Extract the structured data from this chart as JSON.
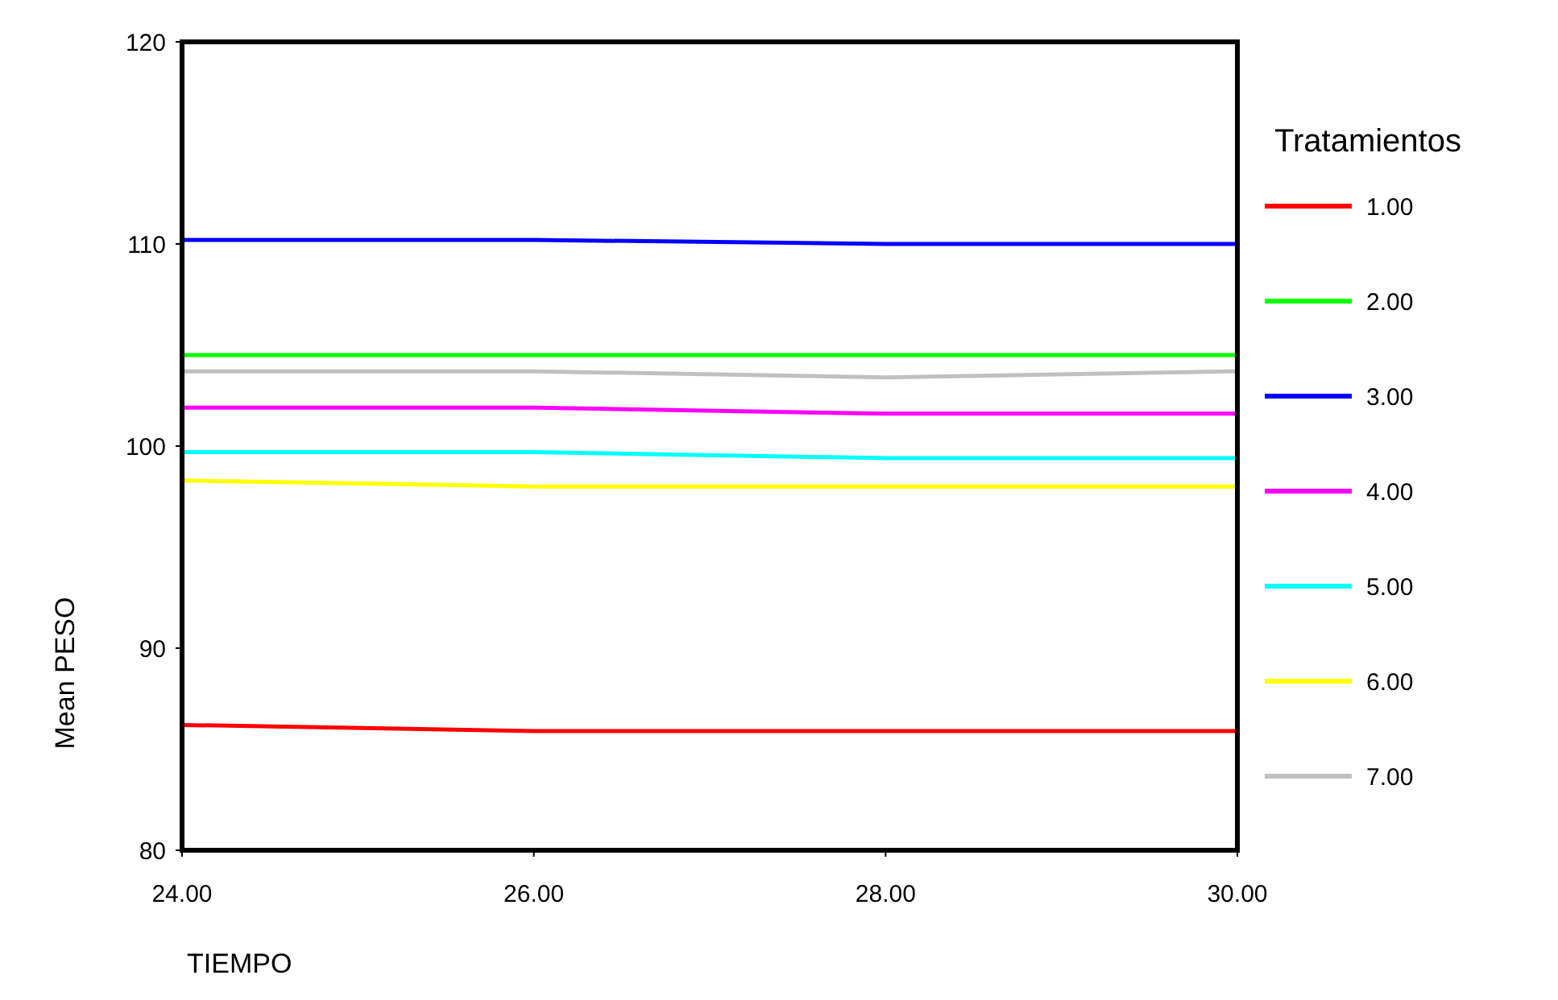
{
  "chart_data": {
    "type": "line",
    "xlabel": "TIEMPO",
    "ylabel": "Mean PESO",
    "legend_title": "Tratamientos",
    "legend": "right",
    "grid": false,
    "marker": "none",
    "line_style": "solid",
    "x": [
      24,
      26,
      28,
      30
    ],
    "xlim": [
      24,
      30
    ],
    "xticks": [
      {
        "value": 24,
        "label": "24.00"
      },
      {
        "value": 26,
        "label": "26.00"
      },
      {
        "value": 28,
        "label": "28.00"
      },
      {
        "value": 30,
        "label": "30.00"
      }
    ],
    "ylim": [
      80,
      120
    ],
    "yticks": [
      80,
      90,
      100,
      110,
      120
    ],
    "series": [
      {
        "name": "1.00",
        "color": "#ff0000",
        "values": [
          86.2,
          85.9,
          85.9,
          85.9
        ]
      },
      {
        "name": "2.00",
        "color": "#00ff00",
        "values": [
          104.5,
          104.5,
          104.5,
          104.5
        ]
      },
      {
        "name": "3.00",
        "color": "#0000ff",
        "values": [
          110.2,
          110.2,
          110.0,
          110.0
        ]
      },
      {
        "name": "4.00",
        "color": "#ff00ff",
        "values": [
          101.9,
          101.9,
          101.6,
          101.6
        ]
      },
      {
        "name": "5.00",
        "color": "#00ffff",
        "values": [
          99.7,
          99.7,
          99.4,
          99.4
        ]
      },
      {
        "name": "6.00",
        "color": "#ffff00",
        "values": [
          98.3,
          98.0,
          98.0,
          98.0
        ]
      },
      {
        "name": "7.00",
        "color": "#c0c0c0",
        "values": [
          103.7,
          103.7,
          103.4,
          103.7
        ]
      }
    ]
  }
}
